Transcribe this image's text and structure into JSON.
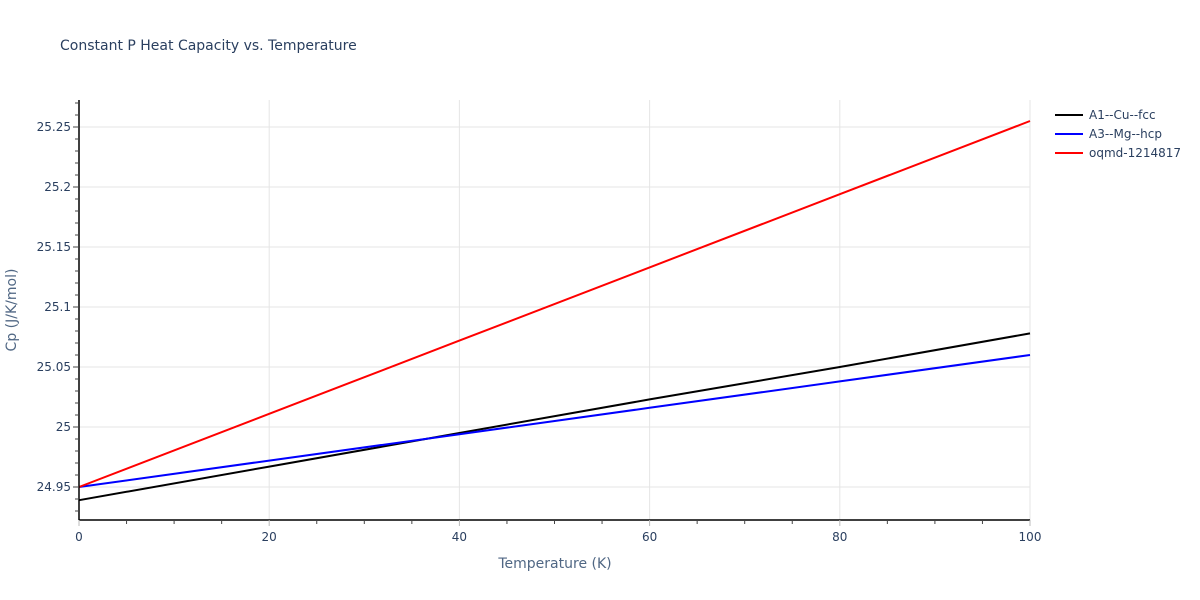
{
  "chart_data": {
    "type": "line",
    "title": "Constant P Heat Capacity vs. Temperature",
    "xlabel": "Temperature (K)",
    "ylabel": "Cp (J/K/mol)",
    "xlim": [
      0,
      100
    ],
    "ylim": [
      24.92,
      25.272
    ],
    "x_ticks": [
      0,
      20,
      40,
      60,
      80,
      100
    ],
    "x_tick_labels": [
      "0",
      "20",
      "40",
      "60",
      "80",
      "100"
    ],
    "y_ticks": [
      24.95,
      25,
      25.05,
      25.1,
      25.15,
      25.2,
      25.25
    ],
    "y_tick_labels": [
      "24.95",
      "25",
      "25.05",
      "25.1",
      "25.15",
      "25.2",
      "25.25"
    ],
    "grid": true,
    "legend_position": "right-top",
    "x": [
      0,
      20,
      40,
      60,
      80,
      100
    ],
    "series": [
      {
        "name": "A1--Cu--fcc",
        "color": "#000000",
        "values": [
          24.939,
          24.967,
          24.995,
          25.023,
          25.05,
          25.078
        ]
      },
      {
        "name": "A3--Mg--hcp",
        "color": "#0000ff",
        "values": [
          24.95,
          24.972,
          24.994,
          25.016,
          25.038,
          25.06
        ]
      },
      {
        "name": "oqmd-1214817",
        "color": "#ff0000",
        "values": [
          24.95,
          25.011,
          25.072,
          25.133,
          25.194,
          25.255
        ]
      }
    ]
  }
}
